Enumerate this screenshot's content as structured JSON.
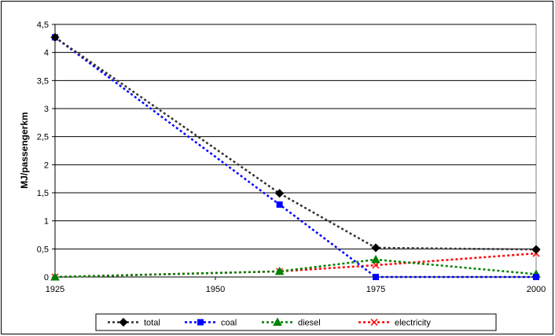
{
  "chart_data": {
    "type": "line",
    "title": "",
    "xlabel": "",
    "ylabel": "MJ/passengerkm",
    "x": [
      1925,
      1960,
      1975,
      2000
    ],
    "x_ticks": [
      "1925",
      "1950",
      "1975",
      "2000"
    ],
    "xlim": [
      1925,
      2000
    ],
    "y_ticks": [
      "0",
      "0,5",
      "1",
      "1,5",
      "2",
      "2,5",
      "3",
      "3,5",
      "4",
      "4,5"
    ],
    "ylim": [
      0,
      4.5
    ],
    "grid": true,
    "legend_position": "bottom",
    "series": [
      {
        "name": "total",
        "values": [
          4.27,
          1.49,
          0.52,
          0.49
        ],
        "color": "#000000",
        "line_color": "#333333",
        "marker": "diamond"
      },
      {
        "name": "coal",
        "values": [
          4.27,
          1.29,
          0.0,
          0.0
        ],
        "color": "#0000ff",
        "line_color": "#0000ff",
        "marker": "square"
      },
      {
        "name": "diesel",
        "values": [
          0.0,
          0.1,
          0.31,
          0.05
        ],
        "color": "#008000",
        "line_color": "#008000",
        "marker": "triangle"
      },
      {
        "name": "electricity",
        "values": [
          0.0,
          0.1,
          0.21,
          0.42
        ],
        "color": "#ff0000",
        "line_color": "#ff0000",
        "marker": "x"
      }
    ]
  }
}
